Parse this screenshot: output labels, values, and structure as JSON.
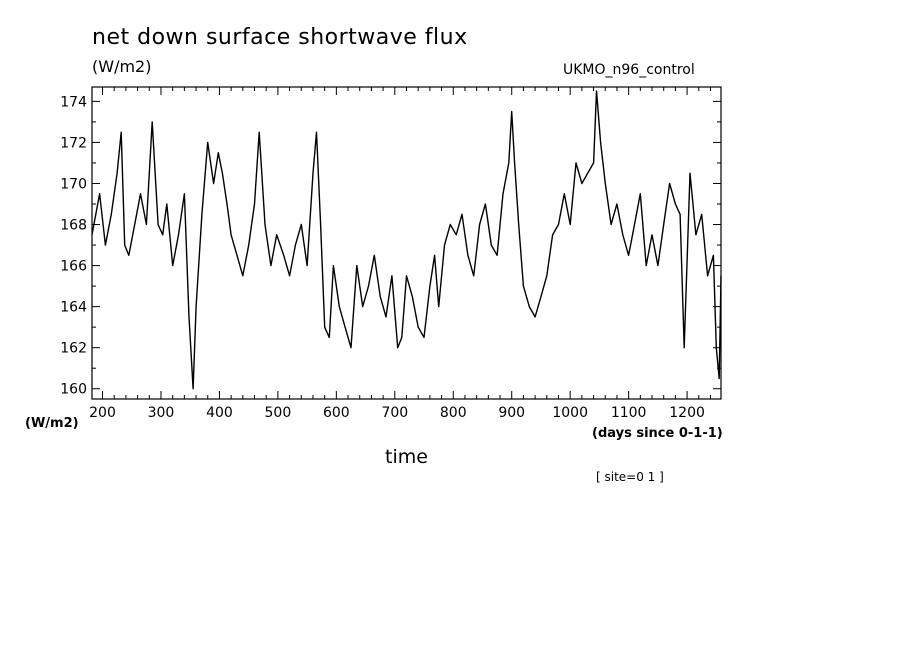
{
  "chart_data": {
    "type": "line",
    "title": "net down surface shortwave flux",
    "units_label": "(W/m2)",
    "model_label": "UKMO_n96_control",
    "xlabel": "time",
    "xunits": "(days since 0-1-1)",
    "yunits": "(W/m2)",
    "site_label": "[ site=0 1 ]",
    "xlim": [
      182,
      1258
    ],
    "ylim": [
      159.5,
      174.7
    ],
    "x_ticks": [
      200,
      300,
      400,
      500,
      600,
      700,
      800,
      900,
      1000,
      1100,
      1200
    ],
    "x_tick_labels": [
      "200",
      "300",
      "400",
      "500",
      "600",
      "700",
      "800",
      "900",
      "1000",
      "1100",
      "1200"
    ],
    "y_ticks": [
      160,
      162,
      164,
      166,
      168,
      170,
      172,
      174
    ],
    "y_tick_labels": [
      "160",
      "162",
      "164",
      "166",
      "168",
      "170",
      "172",
      "174"
    ],
    "grid": false,
    "line_color": "#000000",
    "series": [
      {
        "x": [
          182,
          195,
          205,
          215,
          225,
          232,
          238,
          245,
          255,
          265,
          275,
          285,
          295,
          303,
          310,
          320,
          330,
          340,
          348,
          355,
          360,
          370,
          380,
          390,
          398,
          405,
          413,
          420,
          430,
          440,
          450,
          460,
          468,
          478,
          488,
          498,
          510,
          520,
          530,
          540,
          550,
          560,
          566,
          573,
          580,
          588,
          595,
          605,
          615,
          625,
          635,
          645,
          655,
          665,
          675,
          685,
          695,
          705,
          712,
          720,
          730,
          740,
          750,
          760,
          768,
          775,
          785,
          795,
          805,
          815,
          825,
          835,
          845,
          855,
          865,
          875,
          885,
          895,
          900,
          905,
          912,
          920,
          930,
          940,
          950,
          960,
          970,
          980,
          990,
          1000,
          1010,
          1020,
          1030,
          1040,
          1045,
          1052,
          1060,
          1070,
          1080,
          1090,
          1100,
          1110,
          1120,
          1130,
          1140,
          1150,
          1160,
          1170,
          1180,
          1188,
          1195,
          1205,
          1215,
          1225,
          1235,
          1245,
          1250,
          1255,
          1258
        ],
        "y": [
          167.5,
          169.5,
          167.0,
          168.5,
          170.5,
          172.5,
          167.0,
          166.5,
          168.0,
          169.5,
          168.0,
          173.0,
          168.0,
          167.5,
          169.0,
          166.0,
          167.5,
          169.5,
          163.5,
          160.0,
          164.0,
          168.5,
          172.0,
          170.0,
          171.5,
          170.5,
          169.0,
          167.5,
          166.5,
          165.5,
          167.0,
          169.0,
          172.5,
          168.0,
          166.0,
          167.5,
          166.5,
          165.5,
          167.0,
          168.0,
          166.0,
          170.5,
          172.5,
          168.0,
          163.0,
          162.5,
          166.0,
          164.0,
          163.0,
          162.0,
          166.0,
          164.0,
          165.0,
          166.5,
          164.5,
          163.5,
          165.5,
          162.0,
          162.5,
          165.5,
          164.5,
          163.0,
          162.5,
          165.0,
          166.5,
          164.0,
          167.0,
          168.0,
          167.5,
          168.5,
          166.5,
          165.5,
          168.0,
          169.0,
          167.0,
          166.5,
          169.5,
          171.0,
          173.5,
          171.0,
          168.0,
          165.0,
          164.0,
          163.5,
          164.5,
          165.5,
          167.5,
          168.0,
          169.5,
          168.0,
          171.0,
          170.0,
          170.5,
          171.0,
          174.5,
          172.0,
          170.0,
          168.0,
          169.0,
          167.5,
          166.5,
          168.0,
          169.5,
          166.0,
          167.5,
          166.0,
          168.0,
          170.0,
          169.0,
          168.5,
          162.0,
          170.5,
          167.5,
          168.5,
          165.5,
          166.5,
          162.0,
          160.5,
          165.5
        ]
      }
    ]
  }
}
